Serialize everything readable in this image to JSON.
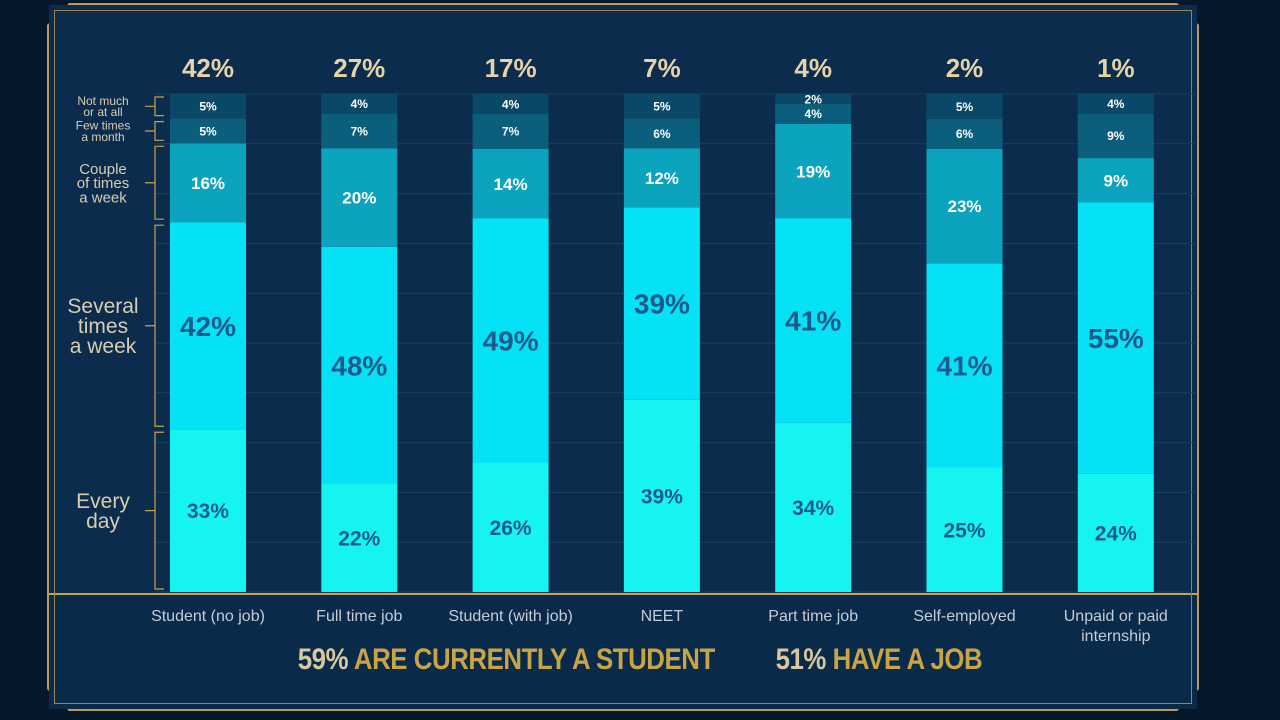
{
  "chart_data": {
    "type": "bar",
    "stacked": true,
    "categories": [
      "Student (no job)",
      "Full time job",
      "Student (with job)",
      "NEET",
      "Part time job",
      "Self-employed",
      "Unpaid or paid internship"
    ],
    "category_share": [
      "42%",
      "27%",
      "17%",
      "7%",
      "4%",
      "2%",
      "1%"
    ],
    "ylim": [
      0,
      100
    ],
    "series": [
      {
        "name": "Every day",
        "values": [
          33,
          22,
          26,
          39,
          34,
          25,
          24
        ],
        "color": "#16f4f2"
      },
      {
        "name": "Several times a week",
        "values": [
          42,
          48,
          49,
          39,
          41,
          41,
          55
        ],
        "color": "#05e2f6"
      },
      {
        "name": "Couple of times a week",
        "values": [
          16,
          20,
          14,
          12,
          19,
          23,
          9
        ],
        "color": "#0ba3bd"
      },
      {
        "name": "Few times a month",
        "values": [
          5,
          7,
          7,
          6,
          4,
          6,
          9
        ],
        "color": "#0b5f7c"
      },
      {
        "name": "Not much or at all",
        "values": [
          5,
          4,
          4,
          5,
          2,
          5,
          4
        ],
        "color": "#0a4868"
      }
    ]
  },
  "footer": {
    "student_pct": "59%",
    "student_text": "are currently a student",
    "job_pct": "51%",
    "job_text": "have a job"
  },
  "colors": {
    "background": "#0b2c4d",
    "gold": "#c9a445",
    "label": "#d9cdb0",
    "dark_text": "#1a5a8c"
  }
}
